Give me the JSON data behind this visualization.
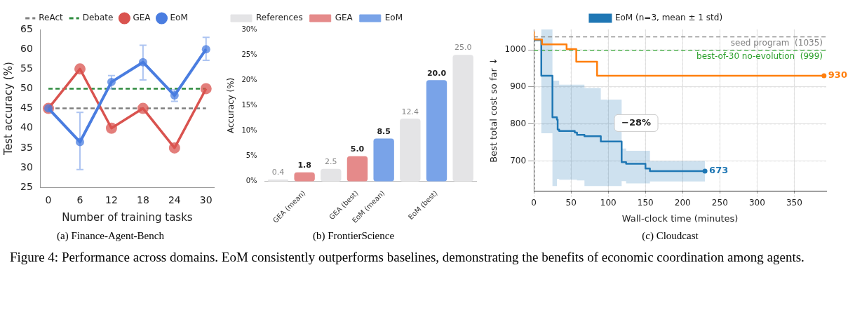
{
  "chart_data": [
    {
      "type": "line",
      "xlabel": "Number of training tasks",
      "ylabel": "Test accuracy (%)",
      "x": [
        0,
        6,
        12,
        18,
        24,
        30
      ],
      "xlim": [
        -1.5,
        31.5
      ],
      "xticks": [
        0,
        6,
        12,
        18,
        24,
        30
      ],
      "ylim": [
        25,
        65
      ],
      "yticks": [
        25,
        30,
        35,
        40,
        45,
        50,
        55,
        60,
        65
      ],
      "marker": "circle",
      "legend": "top",
      "annotations": [
        "(a) Finance-Agent-Bench"
      ],
      "ref_lines": [
        {
          "axis": "y",
          "value": 45,
          "label": "ReAct",
          "color": "#808080",
          "line_style": "dashed"
        },
        {
          "axis": "y",
          "value": 50,
          "label": "Debate",
          "color": "#2e8b3e",
          "line_style": "dashed"
        }
      ],
      "series": [
        {
          "name": "GEA",
          "color": "#d9534f",
          "values": [
            45,
            55,
            40,
            45,
            35,
            50
          ]
        },
        {
          "name": "EoM",
          "color": "#4a7de0",
          "values": [
            45,
            36.5,
            51.7,
            56.7,
            48.3,
            60
          ],
          "errors": [
            null,
            [
              29.5,
              44
            ],
            [
              50,
              53.3
            ],
            [
              52.2,
              61
            ],
            [
              46.8,
              49.7
            ],
            [
              57.2,
              63
            ]
          ]
        }
      ]
    },
    {
      "type": "bar",
      "ylabel": "Accuracy (%)",
      "categories": [
        null,
        "GEA (mean)",
        null,
        "GEA (best)",
        "EoM (mean)",
        null,
        "EoM (best)",
        null
      ],
      "ylim": [
        0,
        30
      ],
      "yticks": [
        {
          "value": 0,
          "label": "0%"
        },
        {
          "value": 5,
          "label": "5%"
        },
        {
          "value": 10,
          "label": "10%"
        },
        {
          "value": 15,
          "label": "15%"
        },
        {
          "value": 20,
          "label": "20%"
        },
        {
          "value": 25,
          "label": "25%"
        },
        {
          "value": 30,
          "label": "30%"
        }
      ],
      "legend": "top left",
      "annotations": [
        "(b) FrontierScience"
      ],
      "series": [
        {
          "name": "References",
          "color": "#e4e4e6",
          "values": [
            0.4,
            null,
            2.5,
            null,
            null,
            12.4,
            null,
            25.0
          ],
          "value_labels": [
            "0.4",
            null,
            "2.5",
            null,
            null,
            "12.4",
            null,
            "25.0"
          ]
        },
        {
          "name": "GEA",
          "color": "#e58a8a",
          "values": [
            null,
            1.8,
            null,
            5.0,
            null,
            null,
            null,
            null
          ],
          "value_labels": [
            null,
            "1.8",
            null,
            "5.0",
            null,
            null,
            null,
            null
          ]
        },
        {
          "name": "EoM",
          "color": "#79a3e8",
          "values": [
            null,
            null,
            null,
            null,
            8.5,
            null,
            20.0,
            null
          ],
          "value_labels": [
            null,
            null,
            null,
            null,
            "8.5",
            null,
            "20.0",
            null
          ]
        }
      ]
    },
    {
      "type": "step",
      "xlabel": "Wall-clock time (minutes)",
      "ylabel": "Best total cost so far ↓",
      "xlim": [
        0,
        393
      ],
      "xticks": [
        0,
        50,
        100,
        150,
        200,
        250,
        300,
        350
      ],
      "ylim": [
        620,
        1055
      ],
      "yticks": [
        700,
        800,
        900,
        1000
      ],
      "grid": true,
      "legend": "top",
      "annotations": [
        "(c) Cloudcast",
        "−28%",
        "Figure 4: Performance across domains. EoM consistently outperforms baselines, demonstrating the benefits of economic coordination among agents."
      ],
      "ref_lines": [
        {
          "axis": "y",
          "value": 1035,
          "label": "seed program  (1035)",
          "color": "#808080",
          "line_style": "dashed"
        },
        {
          "axis": "y",
          "value": 999,
          "label": "best-of-30 no-evolution  (999)",
          "color": "#2ca02c",
          "line_style": "dashed"
        }
      ],
      "series": [
        {
          "name": "EoM (n=3, mean ± 1 std)",
          "color": "#1f77b4",
          "x": [
            0,
            10,
            25,
            31,
            32,
            34,
            55,
            58,
            68,
            90,
            118,
            124,
            150,
            156,
            172,
            230
          ],
          "values": [
            1030,
            1027,
            930,
            818,
            812,
            785,
            781,
            777,
            771,
            767,
            753,
            697,
            693,
            680,
            673,
            673
          ],
          "lower": [
            1025,
            1022,
            775,
            633,
            652,
            652,
            650,
            650,
            648,
            633,
            633,
            646,
            640,
            640,
            645,
            645
          ],
          "upper": [
            1035,
            1032,
            1055,
            917,
            917,
            917,
            906,
            906,
            906,
            897,
            866,
            734,
            728,
            728,
            700,
            700
          ],
          "value_labels": [
            null,
            null,
            null,
            null,
            null,
            null,
            null,
            null,
            null,
            null,
            null,
            null,
            null,
            null,
            null,
            "673"
          ]
        },
        {
          "color": "#ff7f0e",
          "x": [
            0,
            11,
            44,
            57,
            85,
            158,
            390
          ],
          "values": [
            1050,
            1028,
            1015,
            1002,
            968,
            930,
            930
          ],
          "value_labels": [
            null,
            null,
            null,
            null,
            null,
            null,
            "930"
          ]
        }
      ]
    }
  ]
}
